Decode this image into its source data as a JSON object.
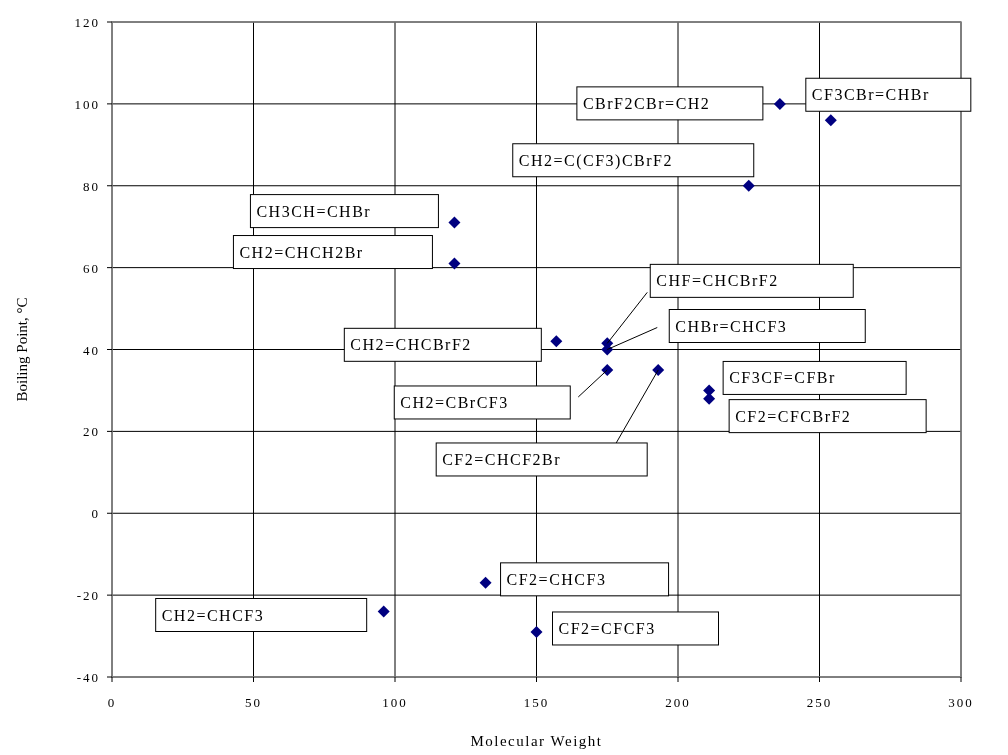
{
  "chart_data": {
    "type": "scatter",
    "xlabel": "Molecular Weight",
    "ylabel": "Boiling Point, °C",
    "x": [
      236,
      254,
      225,
      121,
      121,
      157,
      175,
      175,
      175,
      193,
      211,
      211,
      132,
      96,
      150
    ],
    "values": [
      100,
      96,
      80,
      71,
      61,
      42,
      41.5,
      40,
      35,
      35,
      30,
      28,
      -17,
      -24,
      -29
    ],
    "color": "#000080",
    "marker": "diamond",
    "grid": true,
    "xlim": [
      0,
      300
    ],
    "xticks": [
      0,
      50,
      100,
      150,
      200,
      250,
      300
    ],
    "ylim": [
      -40,
      120
    ],
    "yticks": [
      -40,
      -20,
      0,
      20,
      40,
      60,
      80,
      100,
      120
    ],
    "annotations": [
      "CBrF2CBr=CH2",
      "CF3CBr=CHBr",
      "CH2=C(CF3)CBrF2",
      "CH3CH=CHBr",
      "CH2=CHCH2Br",
      "CH2=CHCBrF2",
      {
        "text": "CHF=CHCBrF2",
        "x": 175,
        "y": 41.5
      },
      {
        "text": "CHBr=CHCF3",
        "x": 175,
        "y": 40
      },
      "CH2=CBrCF3",
      "CF2=CHCF2Br",
      "CF3CF=CFBr",
      "CF2=CFCBrF2",
      "CF2=CHCF3",
      "CH2=CHCF3",
      "CF2=CFCF3"
    ]
  }
}
